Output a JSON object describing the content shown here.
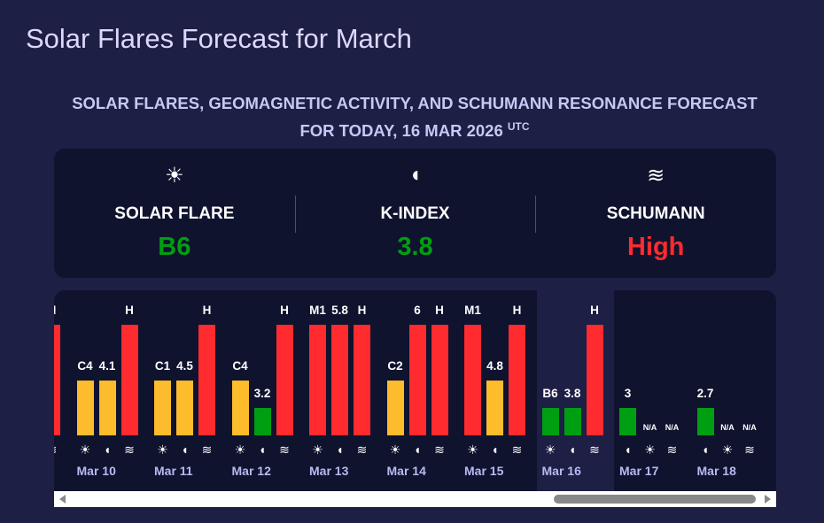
{
  "title": "Solar Flares Forecast for March",
  "subtitle": "SOLAR FLARES, GEOMAGNETIC ACTIVITY, AND SCHUMANN RESONANCE FORECAST FOR TODAY, 16 MAR 2026",
  "subtitle_sup": "UTC",
  "colors": {
    "low": "#009e12",
    "medium": "#fcbc2c",
    "high": "#ff2b2e",
    "date": "#b7baf1"
  },
  "today": [
    {
      "icon": "sun-icon",
      "label": "SOLAR FLARE",
      "value": "B6",
      "color": "#009e12"
    },
    {
      "icon": "magnet-icon",
      "label": "K-INDEX",
      "value": "3.8",
      "color": "#009e12"
    },
    {
      "icon": "waves-icon",
      "label": "SCHUMANN",
      "value": "High",
      "color": "#ff2b2e"
    }
  ],
  "days": [
    {
      "date": "",
      "items": [
        {
          "t": "flare",
          "v": "",
          "lvl": "high"
        },
        {
          "t": "k",
          "v": "",
          "lvl": "high"
        },
        {
          "t": "sch",
          "v": "H",
          "lvl": "high"
        }
      ]
    },
    {
      "date": "Mar 10",
      "items": [
        {
          "t": "flare",
          "v": "C4",
          "lvl": "medium"
        },
        {
          "t": "k",
          "v": "4.1",
          "lvl": "medium"
        },
        {
          "t": "sch",
          "v": "H",
          "lvl": "high"
        }
      ]
    },
    {
      "date": "Mar 11",
      "items": [
        {
          "t": "flare",
          "v": "C1",
          "lvl": "medium"
        },
        {
          "t": "k",
          "v": "4.5",
          "lvl": "medium"
        },
        {
          "t": "sch",
          "v": "H",
          "lvl": "high"
        }
      ]
    },
    {
      "date": "Mar 12",
      "items": [
        {
          "t": "flare",
          "v": "C4",
          "lvl": "medium"
        },
        {
          "t": "k",
          "v": "3.2",
          "lvl": "low"
        },
        {
          "t": "sch",
          "v": "H",
          "lvl": "high"
        }
      ]
    },
    {
      "date": "Mar 13",
      "items": [
        {
          "t": "flare",
          "v": "M1",
          "lvl": "high"
        },
        {
          "t": "k",
          "v": "5.8",
          "lvl": "high"
        },
        {
          "t": "sch",
          "v": "H",
          "lvl": "high"
        }
      ]
    },
    {
      "date": "Mar 14",
      "items": [
        {
          "t": "flare",
          "v": "C2",
          "lvl": "medium"
        },
        {
          "t": "k",
          "v": "6",
          "lvl": "high"
        },
        {
          "t": "sch",
          "v": "H",
          "lvl": "high"
        }
      ]
    },
    {
      "date": "Mar 15",
      "items": [
        {
          "t": "flare",
          "v": "M1",
          "lvl": "high"
        },
        {
          "t": "k",
          "v": "4.8",
          "lvl": "medium"
        },
        {
          "t": "sch",
          "v": "H",
          "lvl": "high"
        }
      ]
    },
    {
      "date": "Mar 16",
      "today": true,
      "items": [
        {
          "t": "flare",
          "v": "B6",
          "lvl": "low"
        },
        {
          "t": "k",
          "v": "3.8",
          "lvl": "low"
        },
        {
          "t": "sch",
          "v": "H",
          "lvl": "high"
        }
      ]
    },
    {
      "date": "Mar 17",
      "items": [
        {
          "t": "k",
          "v": "3",
          "lvl": "low"
        },
        {
          "t": "flare",
          "v": "N/A",
          "lvl": "none"
        },
        {
          "t": "sch",
          "v": "N/A",
          "lvl": "none"
        }
      ]
    },
    {
      "date": "Mar 18",
      "items": [
        {
          "t": "k",
          "v": "2.7",
          "lvl": "low"
        },
        {
          "t": "flare",
          "v": "N/A",
          "lvl": "none"
        },
        {
          "t": "sch",
          "v": "N/A",
          "lvl": "none"
        }
      ]
    }
  ]
}
